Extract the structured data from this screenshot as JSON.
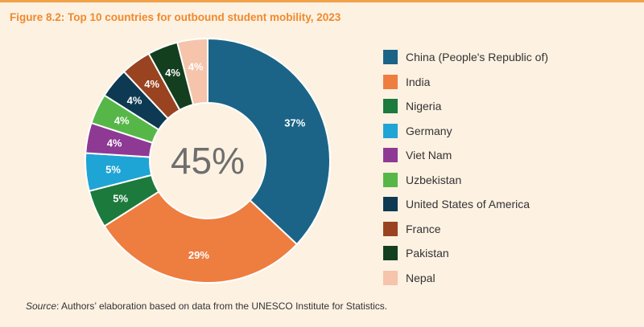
{
  "figure": {
    "title": "Figure 8.2: Top 10 countries for outbound student mobility, 2023",
    "source_label": "Source",
    "source_text": ": Authors’ elaboration based on data from the UNESCO Institute for Statistics."
  },
  "chart_data": {
    "type": "pie",
    "title": "Figure 8.2: Top 10 countries for outbound student mobility, 2023",
    "center_label": "45%",
    "legend_position": "right",
    "slices": [
      {
        "name": "China (People's Republic of)",
        "value": 37,
        "label": "37%",
        "color": "#1b6487"
      },
      {
        "name": "India",
        "value": 29,
        "label": "29%",
        "color": "#ee7d40"
      },
      {
        "name": "Nigeria",
        "value": 5,
        "label": "5%",
        "color": "#1c7a3c"
      },
      {
        "name": "Germany",
        "value": 5,
        "label": "5%",
        "color": "#1fa4d6"
      },
      {
        "name": "Viet Nam",
        "value": 4,
        "label": "4%",
        "color": "#8e3a94"
      },
      {
        "name": "Uzbekistan",
        "value": 4,
        "label": "4%",
        "color": "#56b748"
      },
      {
        "name": "United States of America",
        "value": 4,
        "label": "4%",
        "color": "#0d3a52"
      },
      {
        "name": "France",
        "value": 4,
        "label": "4%",
        "color": "#9a4320"
      },
      {
        "name": "Pakistan",
        "value": 4,
        "label": "4%",
        "color": "#143f1f"
      },
      {
        "name": "Nepal",
        "value": 4,
        "label": "4%",
        "color": "#f5c4aa"
      }
    ]
  }
}
